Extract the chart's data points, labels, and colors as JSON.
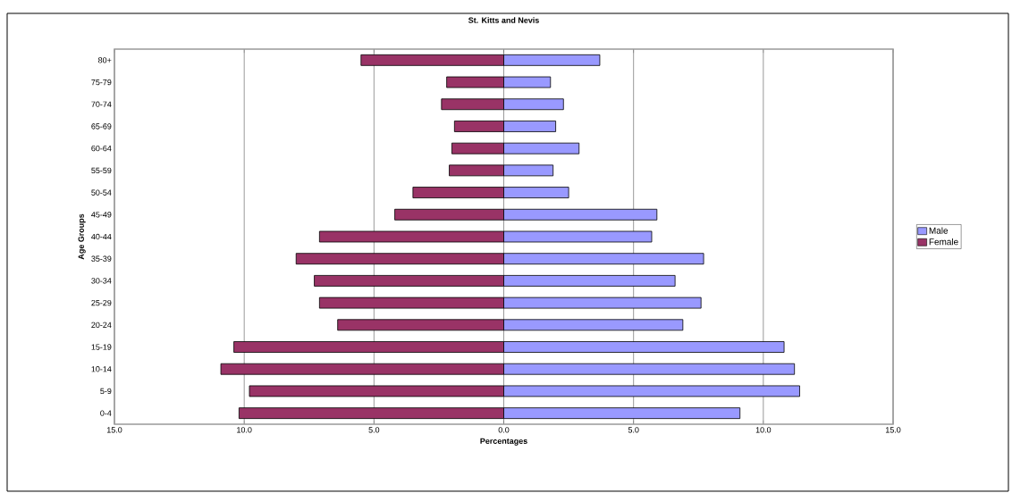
{
  "chart_data": {
    "type": "bar",
    "orientation": "horizontal",
    "title": "St. Kitts and Nevis",
    "xlabel": "Percentages",
    "ylabel": "Age Groups",
    "categories": [
      "80+",
      "75-79",
      "70-74",
      "65-69",
      "60-64",
      "55-59",
      "50-54",
      "45-49",
      "40-44",
      "35-39",
      "30-34",
      "25-29",
      "20-24",
      "15-19",
      "10-14",
      "5-9",
      "0-4"
    ],
    "series": [
      {
        "name": "Male",
        "color": "#9999ff",
        "values": [
          3.7,
          1.8,
          2.3,
          2.0,
          2.9,
          1.9,
          2.5,
          5.9,
          5.7,
          7.7,
          6.6,
          7.6,
          6.9,
          10.8,
          11.2,
          11.4,
          9.1
        ]
      },
      {
        "name": "Female",
        "color": "#993366",
        "values": [
          -5.5,
          -2.2,
          -2.4,
          -1.9,
          -2.0,
          -2.1,
          -3.5,
          -4.2,
          -7.1,
          -8.0,
          -7.3,
          -7.1,
          -6.4,
          -10.4,
          -10.9,
          -9.8,
          -10.2
        ]
      }
    ],
    "xlim": [
      -15,
      15
    ],
    "xticks": [
      {
        "value": -15,
        "label": "15.0"
      },
      {
        "value": -10,
        "label": "10.0"
      },
      {
        "value": -5,
        "label": "5.0"
      },
      {
        "value": 0,
        "label": "0.0"
      },
      {
        "value": 5,
        "label": "5.0"
      },
      {
        "value": 10,
        "label": "10.0"
      },
      {
        "value": 15,
        "label": "15.0"
      }
    ],
    "grid": "x",
    "legend": "right",
    "stacked": true
  }
}
